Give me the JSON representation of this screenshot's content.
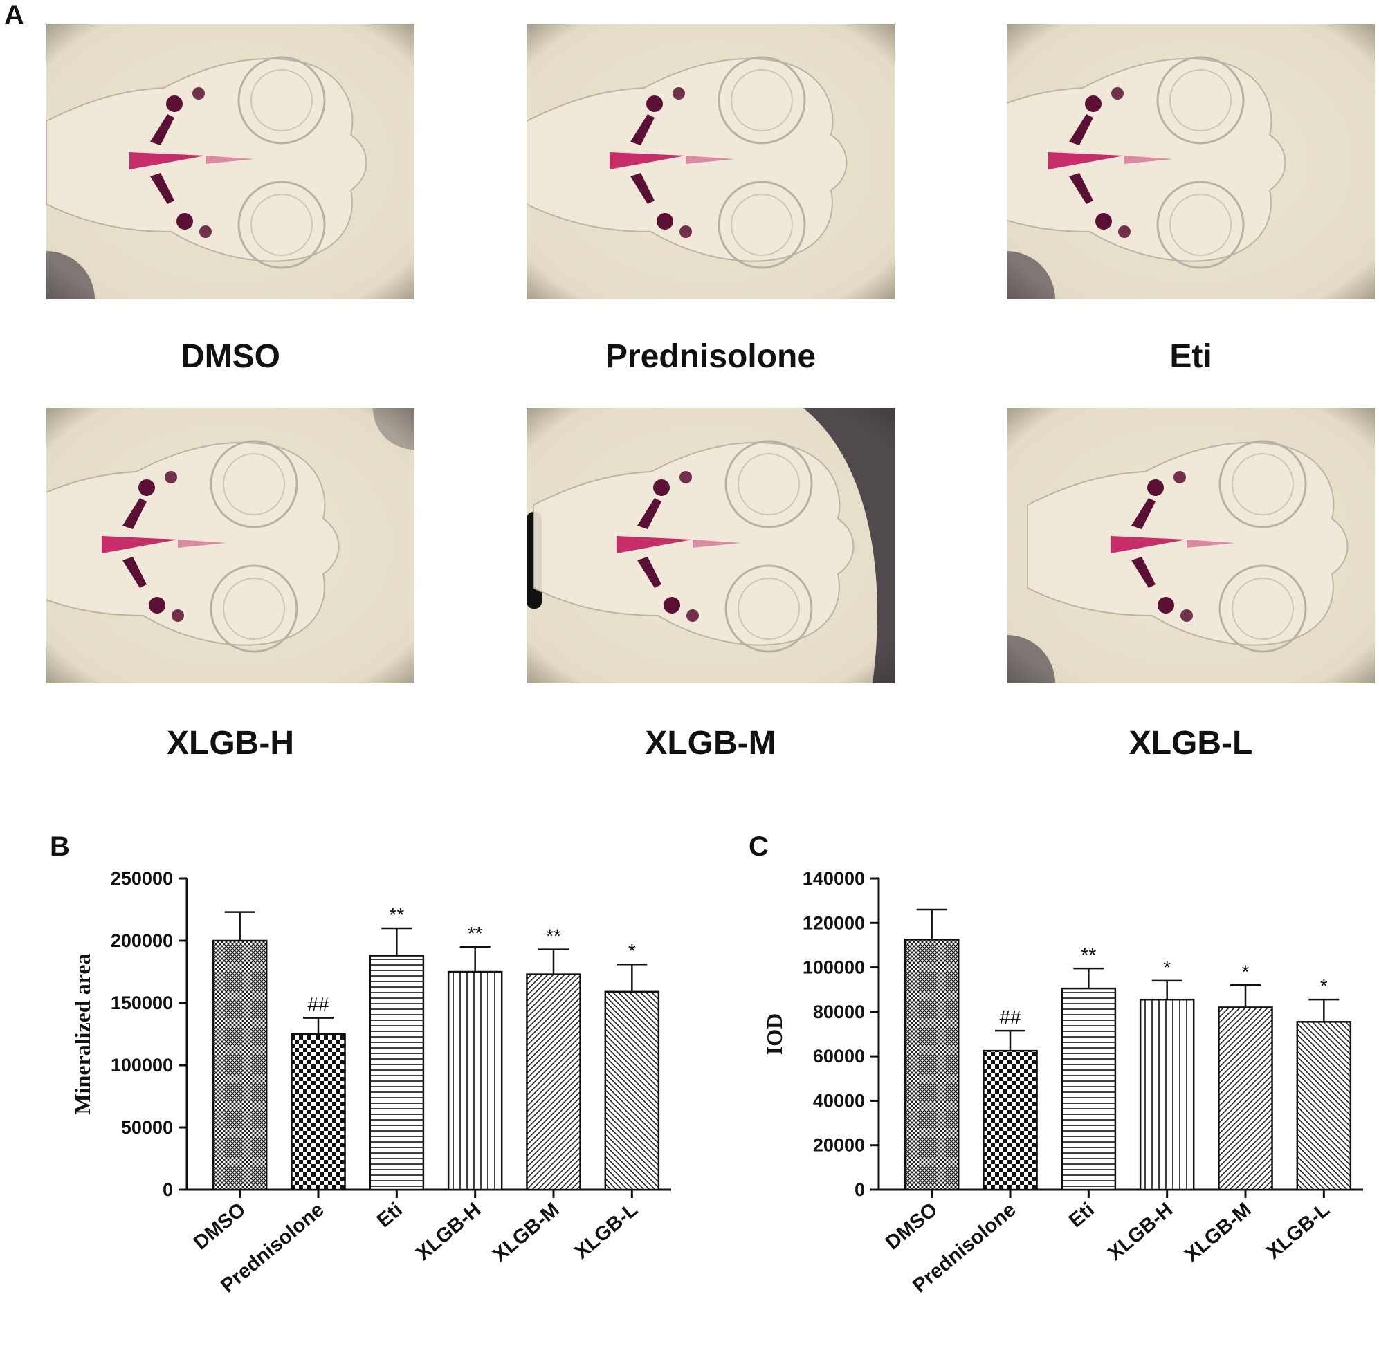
{
  "panel_letters": {
    "a": "A",
    "b": "B",
    "c": "C"
  },
  "micrographs": [
    {
      "label": "DMSO"
    },
    {
      "label": "Prednisolone"
    },
    {
      "label": "Eti"
    },
    {
      "label": "XLGB-H"
    },
    {
      "label": "XLGB-M"
    },
    {
      "label": "XLGB-L"
    }
  ],
  "colors": {
    "stain": "#c2185b",
    "stain_dark": "#5a1034",
    "field": "#ece6d2",
    "bar_line": "#111111"
  },
  "chart_data": [
    {
      "type": "bar",
      "title": "",
      "xlabel": "",
      "ylabel": "Mineralized area",
      "ylim": [
        0,
        250000
      ],
      "yticks": [
        0,
        50000,
        100000,
        150000,
        200000,
        250000
      ],
      "categories": [
        "DMSO",
        "Prednisolone",
        "Eti",
        "XLGB-H",
        "XLGB-M",
        "XLGB-L"
      ],
      "values": [
        200000,
        125000,
        188000,
        175000,
        173000,
        159000
      ],
      "errors": [
        23000,
        13000,
        22000,
        20000,
        20000,
        22000
      ],
      "annotations": [
        "",
        "##",
        "**",
        "**",
        "**",
        "*"
      ],
      "patterns": [
        "crosshatch",
        "checker",
        "horizontal",
        "vertical",
        "diagonal-right",
        "diagonal-left"
      ],
      "grid": false,
      "legend": "none"
    },
    {
      "type": "bar",
      "title": "",
      "xlabel": "",
      "ylabel": "IOD",
      "ylim": [
        0,
        140000
      ],
      "yticks": [
        0,
        20000,
        40000,
        60000,
        80000,
        100000,
        120000,
        140000
      ],
      "categories": [
        "DMSO",
        "Prednisolone",
        "Eti",
        "XLGB-H",
        "XLGB-M",
        "XLGB-L"
      ],
      "values": [
        112500,
        62500,
        90500,
        85500,
        82000,
        75500
      ],
      "errors": [
        13500,
        9000,
        9000,
        8500,
        10000,
        10000
      ],
      "annotations": [
        "",
        "##",
        "**",
        "*",
        "*",
        "*"
      ],
      "patterns": [
        "crosshatch",
        "checker",
        "horizontal",
        "vertical",
        "diagonal-right",
        "diagonal-left"
      ],
      "grid": false,
      "legend": "none"
    }
  ]
}
